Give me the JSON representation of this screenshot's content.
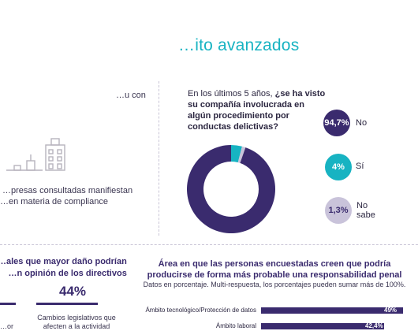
{
  "page": {
    "title": "…ito avanzados",
    "left_text": {
      "line1": "…u con",
      "line2": "…presas consultadas manifiestan",
      "line3": "…en materia de compliance"
    }
  },
  "question": {
    "prefix": "En los últimos 5 años, ",
    "bold": "¿se ha visto su compañía involucrada en algún procedimiento por conductas delictivas?"
  },
  "colors": {
    "accent": "#17b3c2",
    "primary": "#3a2b6e",
    "muted": "#c9c3da"
  },
  "bottom_left": {
    "heading_line1": "…ales que mayor daño podrían",
    "heading_line2": "…n opinión de los directivos",
    "percent": "44%",
    "caption": "Cambios legislativos que afecten a la actividad",
    "cut_text": "…or"
  },
  "bottom_right": {
    "heading": "Área en que las personas encuestadas creen que podría producirse de forma más probable una responsabilidad penal",
    "subtitle": "Datos en porcentaje. Multi-respuesta, los porcentajes pueden sumar más de 100%."
  },
  "chart_data": [
    {
      "type": "pie",
      "variant": "donut",
      "categories": [
        "No",
        "Sí",
        "No sabe"
      ],
      "values": [
        94.7,
        4,
        1.3
      ],
      "value_labels": [
        "94,7%",
        "4%",
        "1,3%"
      ],
      "option_labels": [
        "No",
        "Sí",
        "No sabe"
      ],
      "colors": [
        "#3a2b6e",
        "#17b3c2",
        "#c9c3da"
      ]
    },
    {
      "type": "bar",
      "orientation": "horizontal",
      "categories": [
        "Ámbito tecnológico/Protección de datos",
        "Ámbito laboral"
      ],
      "values": [
        49,
        42.4
      ],
      "value_labels": [
        "49%",
        "42,4%"
      ],
      "xlim": [
        0,
        49
      ]
    }
  ]
}
